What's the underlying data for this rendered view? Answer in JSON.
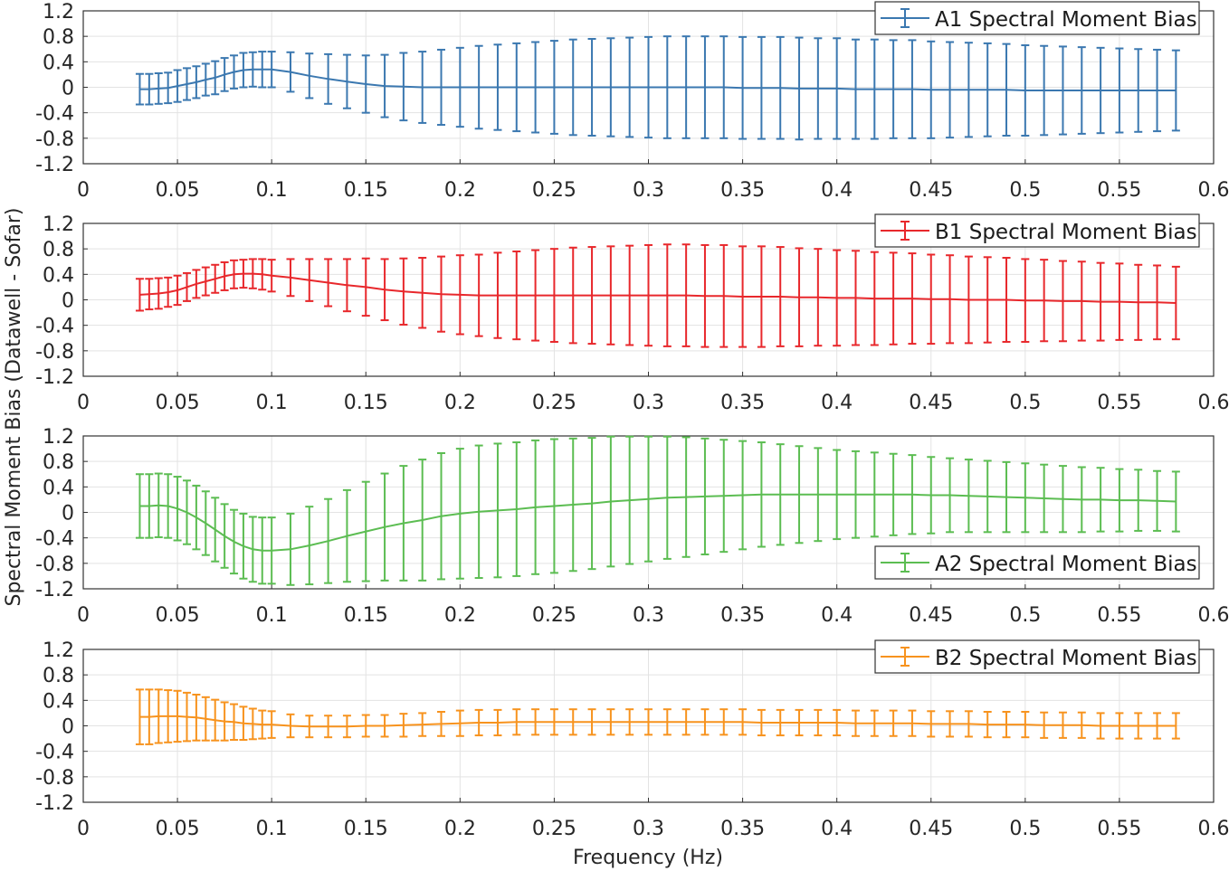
{
  "chart_data": [
    {
      "type": "errorbar",
      "legend": "A1 Spectral Moment Bias",
      "legend_position": "top-right",
      "color": "#3b78b0",
      "xlim": [
        0,
        0.6
      ],
      "ylim": [
        -1.2,
        1.2
      ],
      "xticks": [
        "0",
        "0.05",
        "0.1",
        "0.15",
        "0.2",
        "0.25",
        "0.3",
        "0.35",
        "0.4",
        "0.45",
        "0.5",
        "0.55",
        "0.6"
      ],
      "yticks": [
        "1.2",
        "0.8",
        "0.4",
        "0",
        "-0.4",
        "-0.8",
        "-1.2"
      ],
      "grid": true,
      "mean": [
        -0.03,
        -0.03,
        -0.02,
        -0.01,
        0.02,
        0.05,
        0.08,
        0.12,
        0.15,
        0.2,
        0.24,
        0.27,
        0.28,
        0.28,
        0.28,
        0.24,
        0.18,
        0.13,
        0.09,
        0.05,
        0.02,
        0.01,
        0,
        0,
        0,
        0,
        0,
        0,
        0,
        0,
        0,
        0,
        0,
        0,
        0,
        0,
        0,
        0,
        0,
        -0.01,
        -0.01,
        -0.01,
        -0.02,
        -0.02,
        -0.02,
        -0.03,
        -0.03,
        -0.03,
        -0.03,
        -0.04,
        -0.04,
        -0.04,
        -0.04,
        -0.04,
        -0.05,
        -0.05,
        -0.05,
        -0.05,
        -0.05,
        -0.05,
        -0.05,
        -0.05,
        -0.05
      ],
      "error": [
        0.24,
        0.24,
        0.24,
        0.24,
        0.25,
        0.25,
        0.25,
        0.25,
        0.26,
        0.26,
        0.26,
        0.27,
        0.27,
        0.28,
        0.28,
        0.31,
        0.35,
        0.39,
        0.42,
        0.45,
        0.49,
        0.53,
        0.56,
        0.59,
        0.62,
        0.65,
        0.67,
        0.69,
        0.71,
        0.73,
        0.75,
        0.76,
        0.77,
        0.78,
        0.79,
        0.8,
        0.8,
        0.8,
        0.8,
        0.8,
        0.8,
        0.8,
        0.8,
        0.79,
        0.79,
        0.78,
        0.78,
        0.77,
        0.77,
        0.76,
        0.75,
        0.74,
        0.73,
        0.72,
        0.71,
        0.7,
        0.69,
        0.68,
        0.67,
        0.66,
        0.65,
        0.64,
        0.63
      ]
    },
    {
      "type": "errorbar",
      "legend": "B1 Spectral Moment Bias",
      "legend_position": "top-right",
      "color": "#e8282c",
      "xlim": [
        0,
        0.6
      ],
      "ylim": [
        -1.2,
        1.2
      ],
      "xticks": [
        "0",
        "0.05",
        "0.1",
        "0.15",
        "0.2",
        "0.25",
        "0.3",
        "0.35",
        "0.4",
        "0.45",
        "0.5",
        "0.55",
        "0.6"
      ],
      "yticks": [
        "1.2",
        "0.8",
        "0.4",
        "0",
        "-0.4",
        "-0.8",
        "-1.2"
      ],
      "grid": true,
      "mean": [
        0.08,
        0.09,
        0.1,
        0.12,
        0.15,
        0.2,
        0.25,
        0.29,
        0.33,
        0.37,
        0.4,
        0.41,
        0.41,
        0.4,
        0.38,
        0.35,
        0.31,
        0.27,
        0.23,
        0.2,
        0.16,
        0.13,
        0.11,
        0.09,
        0.08,
        0.07,
        0.07,
        0.07,
        0.07,
        0.07,
        0.07,
        0.07,
        0.07,
        0.07,
        0.07,
        0.07,
        0.07,
        0.06,
        0.06,
        0.05,
        0.05,
        0.05,
        0.04,
        0.04,
        0.03,
        0.03,
        0.02,
        0.02,
        0.02,
        0.01,
        0.01,
        0,
        0,
        0,
        -0.01,
        -0.01,
        -0.02,
        -0.02,
        -0.03,
        -0.03,
        -0.04,
        -0.04,
        -0.05
      ],
      "error": [
        0.25,
        0.24,
        0.24,
        0.23,
        0.23,
        0.22,
        0.22,
        0.22,
        0.22,
        0.22,
        0.22,
        0.22,
        0.23,
        0.24,
        0.25,
        0.29,
        0.33,
        0.37,
        0.41,
        0.45,
        0.48,
        0.52,
        0.55,
        0.59,
        0.62,
        0.64,
        0.67,
        0.69,
        0.71,
        0.73,
        0.75,
        0.76,
        0.77,
        0.78,
        0.79,
        0.8,
        0.8,
        0.8,
        0.8,
        0.79,
        0.79,
        0.78,
        0.77,
        0.76,
        0.75,
        0.74,
        0.73,
        0.72,
        0.71,
        0.7,
        0.69,
        0.68,
        0.67,
        0.66,
        0.65,
        0.64,
        0.63,
        0.62,
        0.61,
        0.6,
        0.59,
        0.58,
        0.57
      ]
    },
    {
      "type": "errorbar",
      "legend": "A2 Spectral Moment Bias",
      "legend_position": "bottom-right",
      "color": "#5cbd52",
      "xlim": [
        0,
        0.6
      ],
      "ylim": [
        -1.2,
        1.2
      ],
      "xticks": [
        "0",
        "0.05",
        "0.1",
        "0.15",
        "0.2",
        "0.25",
        "0.3",
        "0.35",
        "0.4",
        "0.45",
        "0.5",
        "0.55",
        "0.6"
      ],
      "yticks": [
        "1.2",
        "0.8",
        "0.4",
        "0",
        "-0.4",
        "-0.8",
        "-1.2"
      ],
      "grid": true,
      "mean": [
        0.1,
        0.1,
        0.11,
        0.1,
        0.06,
        0.0,
        -0.08,
        -0.17,
        -0.27,
        -0.37,
        -0.46,
        -0.53,
        -0.58,
        -0.6,
        -0.6,
        -0.58,
        -0.52,
        -0.45,
        -0.37,
        -0.3,
        -0.23,
        -0.17,
        -0.12,
        -0.06,
        -0.02,
        0.01,
        0.03,
        0.05,
        0.08,
        0.1,
        0.12,
        0.14,
        0.17,
        0.19,
        0.21,
        0.23,
        0.24,
        0.25,
        0.26,
        0.27,
        0.28,
        0.28,
        0.28,
        0.28,
        0.28,
        0.28,
        0.28,
        0.28,
        0.28,
        0.27,
        0.27,
        0.26,
        0.25,
        0.24,
        0.23,
        0.22,
        0.21,
        0.2,
        0.2,
        0.19,
        0.19,
        0.18,
        0.17
      ],
      "error": [
        0.5,
        0.5,
        0.5,
        0.5,
        0.5,
        0.5,
        0.5,
        0.5,
        0.5,
        0.5,
        0.5,
        0.51,
        0.51,
        0.52,
        0.52,
        0.56,
        0.61,
        0.66,
        0.72,
        0.78,
        0.84,
        0.9,
        0.95,
        0.99,
        1.02,
        1.04,
        1.05,
        1.05,
        1.05,
        1.05,
        1.04,
        1.03,
        1.02,
        1.0,
        0.98,
        0.96,
        0.94,
        0.91,
        0.88,
        0.85,
        0.82,
        0.79,
        0.76,
        0.73,
        0.7,
        0.68,
        0.66,
        0.64,
        0.62,
        0.6,
        0.58,
        0.57,
        0.56,
        0.55,
        0.54,
        0.53,
        0.52,
        0.51,
        0.5,
        0.49,
        0.48,
        0.47,
        0.47
      ]
    },
    {
      "type": "errorbar",
      "legend": "B2 Spectral Moment Bias",
      "legend_position": "top-right",
      "color": "#f7931e",
      "xlim": [
        0,
        0.6
      ],
      "ylim": [
        -1.2,
        1.2
      ],
      "xticks": [
        "0",
        "0.05",
        "0.1",
        "0.15",
        "0.2",
        "0.25",
        "0.3",
        "0.35",
        "0.4",
        "0.45",
        "0.5",
        "0.55",
        "0.6"
      ],
      "yticks": [
        "1.2",
        "0.8",
        "0.4",
        "0",
        "-0.4",
        "-0.8",
        "-1.2"
      ],
      "grid": true,
      "mean": [
        0.14,
        0.14,
        0.15,
        0.15,
        0.15,
        0.14,
        0.13,
        0.11,
        0.09,
        0.07,
        0.06,
        0.04,
        0.03,
        0.02,
        0.02,
        0.0,
        -0.01,
        -0.01,
        -0.01,
        0,
        0,
        0.01,
        0.02,
        0.03,
        0.04,
        0.05,
        0.05,
        0.06,
        0.06,
        0.06,
        0.06,
        0.06,
        0.06,
        0.06,
        0.06,
        0.06,
        0.06,
        0.06,
        0.06,
        0.06,
        0.05,
        0.05,
        0.05,
        0.05,
        0.05,
        0.04,
        0.04,
        0.04,
        0.04,
        0.03,
        0.03,
        0.03,
        0.02,
        0.02,
        0.02,
        0.01,
        0.01,
        0.01,
        0,
        0,
        0,
        0,
        0
      ],
      "error": [
        0.43,
        0.43,
        0.42,
        0.41,
        0.4,
        0.38,
        0.36,
        0.34,
        0.32,
        0.3,
        0.28,
        0.26,
        0.24,
        0.22,
        0.21,
        0.18,
        0.17,
        0.17,
        0.17,
        0.17,
        0.17,
        0.18,
        0.18,
        0.19,
        0.2,
        0.2,
        0.2,
        0.2,
        0.2,
        0.2,
        0.2,
        0.2,
        0.2,
        0.2,
        0.2,
        0.2,
        0.2,
        0.2,
        0.2,
        0.2,
        0.2,
        0.2,
        0.2,
        0.2,
        0.2,
        0.2,
        0.2,
        0.2,
        0.2,
        0.2,
        0.2,
        0.2,
        0.2,
        0.2,
        0.2,
        0.2,
        0.2,
        0.2,
        0.2,
        0.2,
        0.2,
        0.2,
        0.2
      ]
    }
  ],
  "x": [
    0.03,
    0.035,
    0.04,
    0.045,
    0.05,
    0.055,
    0.06,
    0.065,
    0.07,
    0.075,
    0.08,
    0.085,
    0.09,
    0.095,
    0.1,
    0.11,
    0.12,
    0.13,
    0.14,
    0.15,
    0.16,
    0.17,
    0.18,
    0.19,
    0.2,
    0.21,
    0.22,
    0.23,
    0.24,
    0.25,
    0.26,
    0.27,
    0.28,
    0.29,
    0.3,
    0.31,
    0.32,
    0.33,
    0.34,
    0.35,
    0.36,
    0.37,
    0.38,
    0.39,
    0.4,
    0.41,
    0.42,
    0.43,
    0.44,
    0.45,
    0.46,
    0.47,
    0.48,
    0.49,
    0.5,
    0.51,
    0.52,
    0.53,
    0.54,
    0.55,
    0.56,
    0.57,
    0.58
  ],
  "xlabel": "Frequency (Hz)",
  "ylabel": "Spectral Moment Bias (Datawell - Sofar)"
}
